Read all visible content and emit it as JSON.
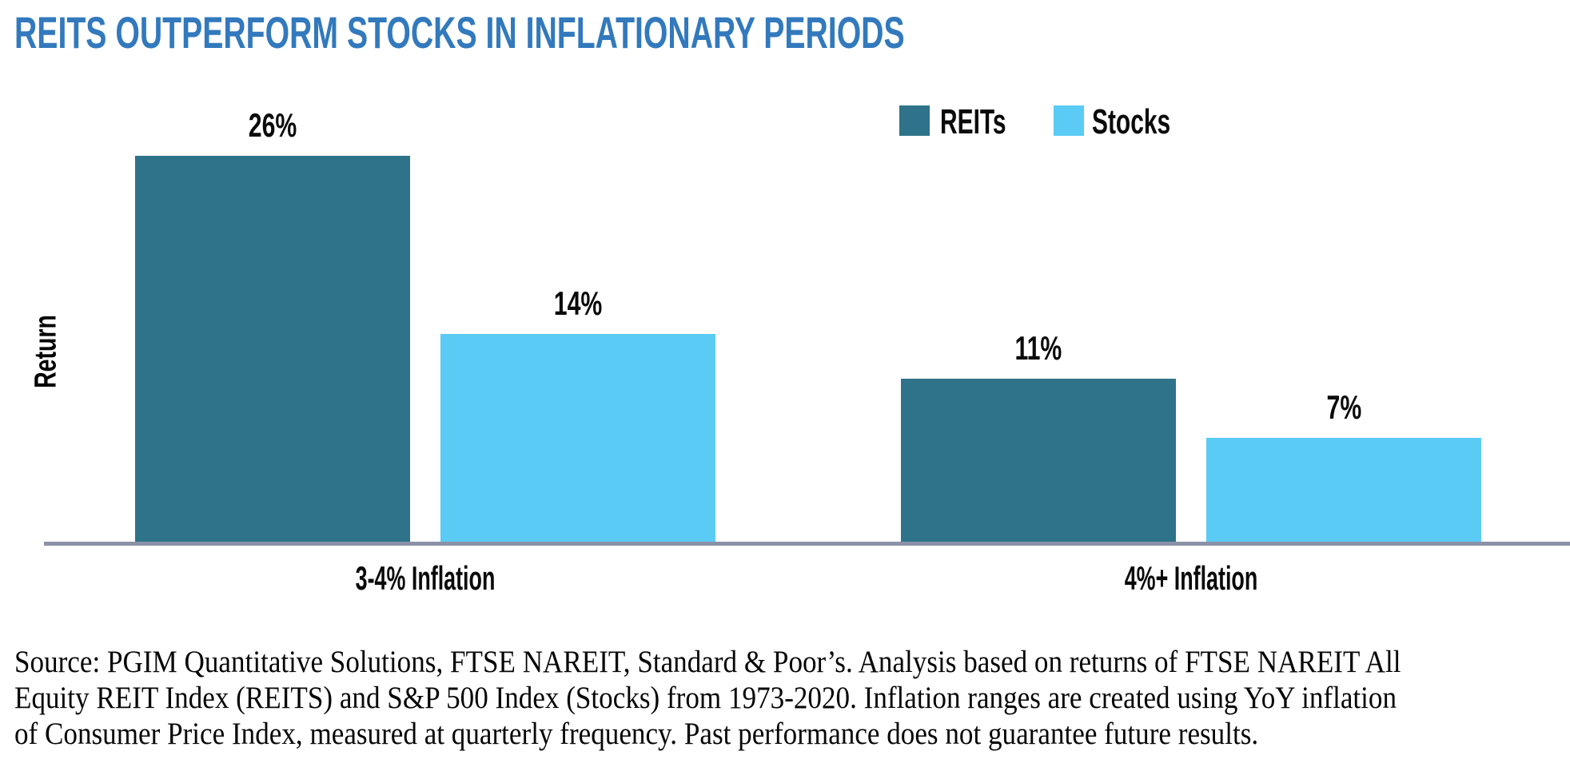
{
  "title": {
    "text": "REITS OUTPERFORM STOCKS IN INFLATIONARY PERIODS",
    "color": "#3279BD"
  },
  "chart_data": {
    "type": "bar",
    "categories": [
      "3-4% Inflation",
      "4%+ Inflation"
    ],
    "series": [
      {
        "name": "REITs",
        "color": "#2E7389",
        "values": [
          26,
          11
        ]
      },
      {
        "name": "Stocks",
        "color": "#5ACBF5",
        "values": [
          14,
          7
        ]
      }
    ],
    "data_labels": [
      "26%",
      "14%",
      "11%",
      "7%"
    ],
    "value_suffix": "%",
    "title": "REITS OUTPERFORM STOCKS IN INFLATIONARY PERIODS",
    "xlabel": "",
    "ylabel": "Return",
    "ylim": [
      0,
      28
    ],
    "grid": false,
    "legend_position": "top-right",
    "axis_color": "#8B91A7"
  },
  "ylabel": "Return",
  "legend": {
    "items": [
      {
        "label": "REITs"
      },
      {
        "label": "Stocks"
      }
    ]
  },
  "source_note": {
    "lines": [
      "Source: PGIM Quantitative Solutions, FTSE NAREIT, Standard & Poor’s. Analysis based on returns of FTSE NAREIT All",
      "Equity REIT Index (REITS) and S&P 500 Index (Stocks) from 1973-2020. Inflation ranges are created using YoY inflation",
      "of Consumer Price Index, measured at quarterly frequency. Past performance does not guarantee future results."
    ]
  }
}
